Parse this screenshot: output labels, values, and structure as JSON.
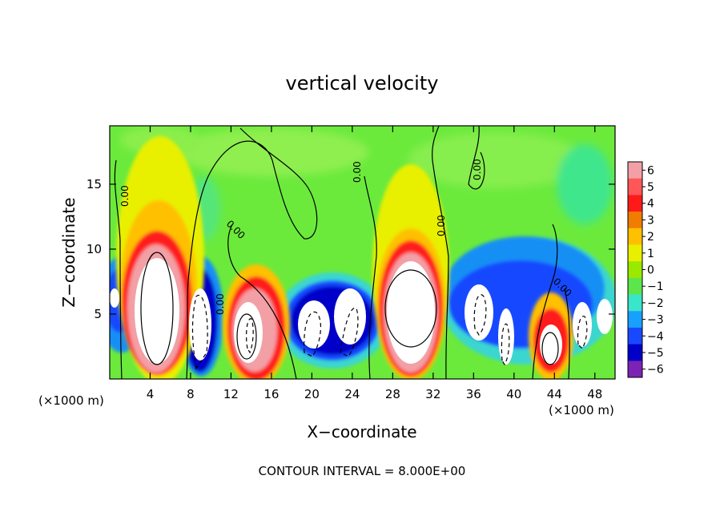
{
  "chart_data": {
    "type": "heatmap",
    "title": "vertical velocity",
    "xlabel": "X−coordinate",
    "ylabel": "Z−coordinate",
    "x_unit_left": "(×1000 m)",
    "x_unit_right": "(×1000 m)",
    "footer": "CONTOUR INTERVAL = 8.000E+00",
    "xlim": [
      0,
      50
    ],
    "ylim": [
      0,
      19.5
    ],
    "x_ticks": [
      4,
      8,
      12,
      16,
      20,
      24,
      28,
      32,
      36,
      40,
      44,
      48
    ],
    "y_ticks": [
      5,
      10,
      15
    ],
    "colorbar": {
      "ticks": [
        "6",
        "5",
        "4",
        "3",
        "2",
        "1",
        "0",
        "−1",
        "−2",
        "−3",
        "−4",
        "−5",
        "−6"
      ],
      "colors": [
        "#f2a0a6",
        "#ff5757",
        "#ff1a1a",
        "#f07c00",
        "#ffc000",
        "#e8f000",
        "#9be800",
        "#5ce64b",
        "#39e6c9",
        "#18a0ff",
        "#1849ff",
        "#0000c8",
        "#7c22b5"
      ]
    },
    "contour_labels": [
      "0.00",
      "0.00",
      "0.00",
      "0.00",
      "0.00",
      "0.00",
      "0.00"
    ]
  }
}
